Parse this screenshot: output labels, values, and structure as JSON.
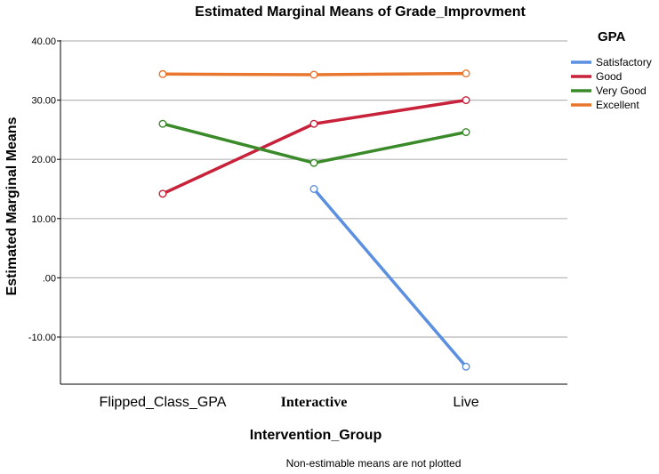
{
  "chart_data": {
    "type": "line",
    "title": "Estimated Marginal Means of Grade_Improvment",
    "xlabel": "Intervention_Group",
    "ylabel": "Estimated Marginal Means",
    "categories": [
      "Flipped_Class_GPA",
      "Interactive",
      "Live"
    ],
    "y_tick_labels": [
      "40.00",
      "30.00",
      "20.00",
      "10.00",
      ".00",
      "-10.00"
    ],
    "y_ticks": [
      40,
      30,
      20,
      10,
      0,
      -10
    ],
    "ylim": [
      -18,
      45
    ],
    "grid": true,
    "legend_title": "GPA",
    "legend_position": "right",
    "series": [
      {
        "name": "Satisfactory",
        "color": "#5b8fe0",
        "values": [
          null,
          15.0,
          -15.0
        ]
      },
      {
        "name": "Good",
        "color": "#c8213a",
        "values": [
          14.2,
          26.0,
          30.0
        ]
      },
      {
        "name": "Very Good",
        "color": "#3a8a2a",
        "values": [
          26.0,
          19.4,
          24.6
        ]
      },
      {
        "name": "Excellent",
        "color": "#e8762f",
        "values": [
          34.4,
          34.3,
          34.5
        ]
      }
    ],
    "footnote": "Non-estimable means are not plotted"
  }
}
